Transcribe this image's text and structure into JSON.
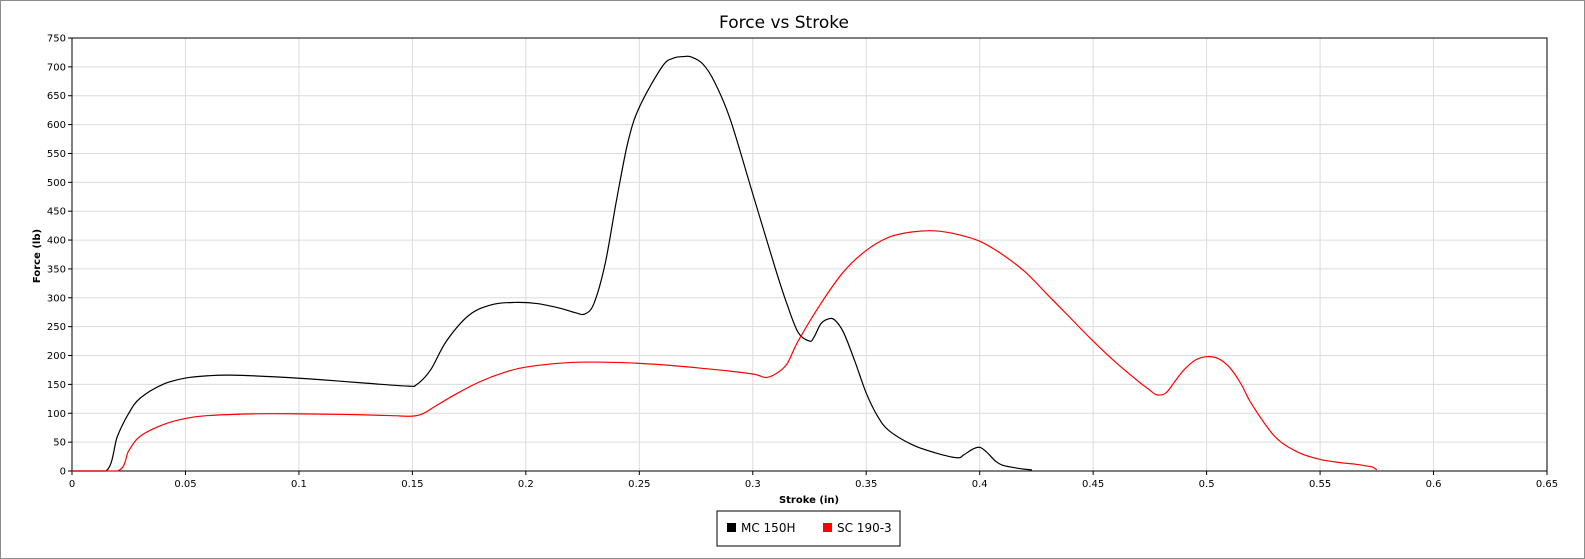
{
  "chart_data": {
    "type": "line",
    "title": "Force vs Stroke",
    "xlabel": "Stroke (in)",
    "ylabel": "Force (lb)",
    "xlim": [
      0,
      0.65
    ],
    "ylim": [
      0,
      750
    ],
    "xticks": [
      0,
      0.05,
      0.1,
      0.15,
      0.2,
      0.25,
      0.3,
      0.35,
      0.4,
      0.45,
      0.5,
      0.55,
      0.6,
      0.65
    ],
    "xtick_labels": [
      "0",
      "0.05",
      "0.1",
      "0.15",
      "0.2",
      "0.25",
      "0.3",
      "0.35",
      "0.4",
      "0.45",
      "0.5",
      "0.55",
      "0.6",
      "0.65"
    ],
    "yticks": [
      0,
      50,
      100,
      150,
      200,
      250,
      300,
      350,
      400,
      450,
      500,
      550,
      600,
      650,
      700,
      750
    ],
    "ytick_labels": [
      "0",
      "50",
      "100",
      "150",
      "200",
      "250",
      "300",
      "350",
      "400",
      "450",
      "500",
      "550",
      "600",
      "650",
      "700",
      "750"
    ],
    "grid": true,
    "legend_position": "bottom-center",
    "series": [
      {
        "name": "MC 150H",
        "color": "#000000",
        "x": [
          0,
          0.015,
          0.02,
          0.025,
          0.03,
          0.04,
          0.05,
          0.06,
          0.07,
          0.09,
          0.11,
          0.13,
          0.148,
          0.152,
          0.158,
          0.165,
          0.175,
          0.185,
          0.195,
          0.205,
          0.215,
          0.222,
          0.226,
          0.23,
          0.235,
          0.24,
          0.245,
          0.25,
          0.26,
          0.265,
          0.27,
          0.273,
          0.278,
          0.283,
          0.29,
          0.3,
          0.31,
          0.315,
          0.32,
          0.325,
          0.327,
          0.33,
          0.333,
          0.336,
          0.34,
          0.345,
          0.35,
          0.355,
          0.36,
          0.37,
          0.38,
          0.39,
          0.393,
          0.397,
          0.4,
          0.403,
          0.407,
          0.41,
          0.415,
          0.42,
          0.423
        ],
        "y": [
          0,
          0,
          60,
          100,
          126,
          150,
          161,
          165,
          166,
          163,
          158,
          152,
          147,
          150,
          175,
          225,
          270,
          288,
          292,
          290,
          282,
          274,
          272,
          290,
          360,
          470,
          570,
          630,
          700,
          715,
          718,
          717,
          705,
          675,
          610,
          480,
          350,
          290,
          240,
          225,
          232,
          255,
          263,
          262,
          240,
          190,
          135,
          95,
          70,
          46,
          32,
          23,
          28,
          38,
          41,
          33,
          17,
          10,
          6,
          3,
          2
        ]
      },
      {
        "name": "SC 190-3",
        "color": "#ff0000",
        "x": [
          0,
          0.02,
          0.025,
          0.03,
          0.04,
          0.05,
          0.06,
          0.08,
          0.1,
          0.12,
          0.14,
          0.15,
          0.155,
          0.16,
          0.17,
          0.18,
          0.19,
          0.2,
          0.22,
          0.24,
          0.26,
          0.28,
          0.29,
          0.3,
          0.303,
          0.306,
          0.31,
          0.315,
          0.32,
          0.33,
          0.34,
          0.35,
          0.36,
          0.37,
          0.38,
          0.39,
          0.4,
          0.41,
          0.42,
          0.43,
          0.44,
          0.45,
          0.46,
          0.47,
          0.475,
          0.478,
          0.482,
          0.486,
          0.49,
          0.495,
          0.5,
          0.505,
          0.51,
          0.515,
          0.52,
          0.53,
          0.54,
          0.55,
          0.56,
          0.565,
          0.57,
          0.573,
          0.575
        ],
        "y": [
          0,
          0,
          35,
          60,
          80,
          91,
          96,
          99,
          99,
          98,
          96,
          95,
          100,
          112,
          135,
          155,
          170,
          180,
          188,
          188,
          184,
          177,
          173,
          168,
          165,
          162,
          168,
          185,
          225,
          290,
          345,
          382,
          405,
          414,
          416,
          410,
          398,
          375,
          345,
          305,
          265,
          225,
          188,
          155,
          140,
          132,
          135,
          155,
          175,
          192,
          198,
          195,
          180,
          152,
          115,
          60,
          33,
          20,
          14,
          12,
          9,
          7,
          2
        ]
      }
    ]
  }
}
